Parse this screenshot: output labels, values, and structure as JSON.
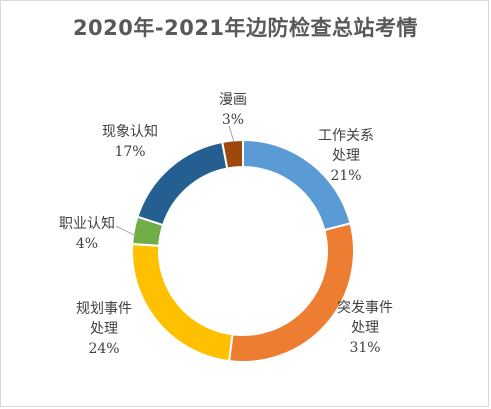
{
  "chart_data": {
    "type": "pie",
    "variant": "doughnut",
    "title": "2020年-2021年边防检查总站考情",
    "slices": [
      {
        "label_lines": [
          "工作关系",
          "处理"
        ],
        "value": 21,
        "value_label": "21%",
        "color": "#5b9bd5"
      },
      {
        "label_lines": [
          "突发事件",
          "处理"
        ],
        "value": 31,
        "value_label": "31%",
        "color": "#ed7d31"
      },
      {
        "label_lines": [
          "规划事件",
          "处理"
        ],
        "value": 24,
        "value_label": "24%",
        "color": "#ffc000"
      },
      {
        "label_lines": [
          "职业认知"
        ],
        "value": 4,
        "value_label": "4%",
        "color": "#70ad47"
      },
      {
        "label_lines": [
          "现象认知"
        ],
        "value": 17,
        "value_label": "17%",
        "color": "#255e91"
      },
      {
        "label_lines": [
          "漫画"
        ],
        "value": 3,
        "value_label": "3%",
        "color": "#9e480e"
      }
    ],
    "legend": "none",
    "labels_outside": true
  }
}
